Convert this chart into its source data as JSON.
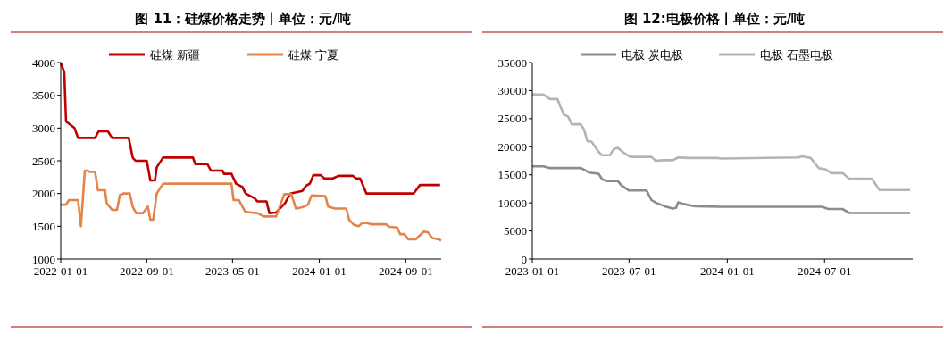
{
  "chart_data": [
    {
      "type": "line",
      "title": "图 11：硅煤价格走势丨单位：元/吨",
      "legend": "top",
      "line_style": "solid",
      "marker": "none",
      "grid": false,
      "xlim": [
        "2022-01-01",
        "2024-12-10"
      ],
      "xticks": [
        "2022-01-01",
        "2022-09-01",
        "2023-05-01",
        "2024-01-01",
        "2024-09-01"
      ],
      "ylim": [
        1000,
        4000
      ],
      "yticks": [
        1000,
        1500,
        2000,
        2500,
        3000,
        3500,
        4000
      ],
      "series": [
        {
          "name": "硅煤 新疆",
          "color": "#c00000",
          "x": [
            "2022-01-01",
            "2022-01-11",
            "2022-01-16",
            "2022-02-09",
            "2022-02-19",
            "2022-04-08",
            "2022-04-18",
            "2022-05-14",
            "2022-05-26",
            "2022-07-12",
            "2022-07-23",
            "2022-07-31",
            "2022-09-01",
            "2022-09-11",
            "2022-09-24",
            "2022-09-29",
            "2022-10-17",
            "2023-01-09",
            "2023-01-16",
            "2023-02-19",
            "2023-03-01",
            "2023-04-03",
            "2023-04-07",
            "2023-04-28",
            "2023-05-11",
            "2023-05-29",
            "2023-06-07",
            "2023-07-02",
            "2023-07-10",
            "2023-08-05",
            "2023-08-13",
            "2023-09-01",
            "2023-09-26",
            "2023-10-11",
            "2023-11-14",
            "2023-11-25",
            "2023-12-05",
            "2023-12-15",
            "2024-01-05",
            "2024-01-15",
            "2024-02-08",
            "2024-02-24",
            "2024-04-05",
            "2024-04-13",
            "2024-04-25",
            "2024-05-13",
            "2024-09-23",
            "2024-10-11",
            "2024-12-07"
          ],
          "values": [
            4000,
            3850,
            3100,
            3000,
            2850,
            2850,
            2950,
            2950,
            2850,
            2850,
            2550,
            2500,
            2500,
            2200,
            2200,
            2400,
            2550,
            2550,
            2450,
            2450,
            2350,
            2350,
            2300,
            2300,
            2150,
            2100,
            2000,
            1930,
            1880,
            1880,
            1700,
            1710,
            1850,
            2000,
            2040,
            2120,
            2150,
            2280,
            2280,
            2230,
            2230,
            2270,
            2270,
            2230,
            2230,
            2000,
            2000,
            2130,
            2130
          ]
        },
        {
          "name": "硅煤 宁夏",
          "color": "#e3844a",
          "x": [
            "2022-01-01",
            "2022-01-16",
            "2022-01-24",
            "2022-02-19",
            "2022-02-27",
            "2022-03-10",
            "2022-03-17",
            "2022-03-25",
            "2022-04-08",
            "2022-04-16",
            "2022-05-06",
            "2022-05-11",
            "2022-05-26",
            "2022-06-09",
            "2022-06-17",
            "2022-06-27",
            "2022-07-15",
            "2022-07-23",
            "2022-08-02",
            "2022-08-21",
            "2022-09-04",
            "2022-09-11",
            "2022-09-19",
            "2022-09-29",
            "2022-10-17",
            "2023-04-28",
            "2023-05-04",
            "2023-05-19",
            "2023-05-29",
            "2023-06-06",
            "2023-07-10",
            "2023-07-28",
            "2023-09-01",
            "2023-09-24",
            "2023-10-14",
            "2023-10-27",
            "2023-11-14",
            "2023-11-30",
            "2023-12-10",
            "2024-01-18",
            "2024-01-26",
            "2024-02-14",
            "2024-03-17",
            "2024-03-25",
            "2024-04-08",
            "2024-04-21",
            "2024-05-01",
            "2024-05-16",
            "2024-05-26",
            "2024-07-07",
            "2024-07-18",
            "2024-08-08",
            "2024-08-16",
            "2024-08-28",
            "2024-09-08",
            "2024-09-29",
            "2024-10-22",
            "2024-11-02",
            "2024-11-15",
            "2024-12-03",
            "2024-12-10"
          ],
          "values": [
            1830,
            1830,
            1900,
            1900,
            1500,
            2350,
            2350,
            2330,
            2330,
            2050,
            2050,
            1850,
            1750,
            1750,
            1980,
            2000,
            2000,
            1800,
            1700,
            1700,
            1800,
            1600,
            1600,
            2000,
            2150,
            2150,
            1900,
            1900,
            1800,
            1720,
            1700,
            1650,
            1650,
            1990,
            1990,
            1770,
            1790,
            1830,
            1970,
            1960,
            1800,
            1770,
            1770,
            1600,
            1520,
            1500,
            1550,
            1550,
            1530,
            1530,
            1490,
            1480,
            1380,
            1380,
            1300,
            1300,
            1420,
            1410,
            1320,
            1300,
            1280
          ]
        }
      ]
    },
    {
      "type": "line",
      "title": "图 12:电极价格丨单位：元/吨",
      "legend": "top",
      "line_style": "solid",
      "marker": "none",
      "grid": false,
      "xlim": [
        "2023-01-01",
        "2024-12-13"
      ],
      "xticks": [
        "2023-01-01",
        "2023-07-01",
        "2024-01-01",
        "2024-07-01"
      ],
      "ylim": [
        0,
        35000
      ],
      "yticks": [
        0,
        5000,
        10000,
        15000,
        20000,
        25000,
        30000,
        35000
      ],
      "series": [
        {
          "name": "电极 炭电极",
          "color": "#8c8c8c",
          "x": [
            "2023-01-01",
            "2023-01-22",
            "2023-02-03",
            "2023-04-02",
            "2023-04-10",
            "2023-04-17",
            "2023-05-05",
            "2023-05-12",
            "2023-05-20",
            "2023-06-10",
            "2023-06-17",
            "2023-07-01",
            "2023-08-03",
            "2023-08-12",
            "2023-08-21",
            "2023-09-06",
            "2023-09-21",
            "2023-09-27",
            "2023-10-01",
            "2023-10-11",
            "2023-11-02",
            "2023-12-19",
            "2024-06-26",
            "2024-07-08",
            "2024-08-04",
            "2024-08-16",
            "2024-12-08"
          ],
          "values": [
            16500,
            16500,
            16200,
            16200,
            15800,
            15400,
            15200,
            14200,
            13900,
            13900,
            13100,
            12200,
            12200,
            10500,
            10000,
            9400,
            9000,
            9100,
            10100,
            9800,
            9400,
            9300,
            9300,
            8900,
            8900,
            8200,
            8200
          ]
        },
        {
          "name": "电极 石墨电极",
          "color": "#b4b4b4",
          "x": [
            "2023-01-01",
            "2023-01-22",
            "2023-02-03",
            "2023-02-17",
            "2023-03-01",
            "2023-03-09",
            "2023-03-16",
            "2023-04-02",
            "2023-04-08",
            "2023-04-14",
            "2023-04-22",
            "2023-05-05",
            "2023-05-11",
            "2023-05-26",
            "2023-06-03",
            "2023-06-10",
            "2023-06-19",
            "2023-07-01",
            "2023-07-07",
            "2023-08-12",
            "2023-08-20",
            "2023-09-03",
            "2023-09-21",
            "2023-10-01",
            "2023-10-20",
            "2023-12-13",
            "2023-12-22",
            "2024-05-12",
            "2024-05-21",
            "2024-06-05",
            "2024-06-20",
            "2024-07-02",
            "2024-07-14",
            "2024-08-04",
            "2024-08-16",
            "2024-09-27",
            "2024-10-12",
            "2024-12-08"
          ],
          "values": [
            29300,
            29300,
            28500,
            28500,
            25700,
            25400,
            24000,
            24000,
            23000,
            21000,
            20900,
            19100,
            18500,
            18500,
            19600,
            19800,
            19100,
            18300,
            18200,
            18200,
            17500,
            17600,
            17600,
            18100,
            18000,
            18000,
            17900,
            18100,
            18300,
            18000,
            16200,
            16000,
            15300,
            15300,
            14300,
            14300,
            12300,
            12300
          ]
        }
      ]
    }
  ]
}
